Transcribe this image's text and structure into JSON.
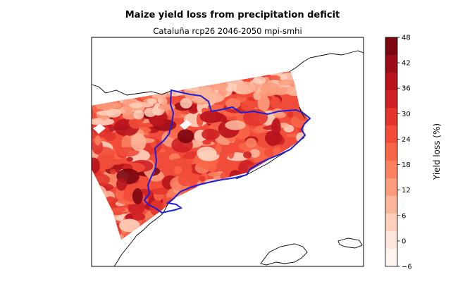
{
  "chart_data": {
    "type": "heatmap",
    "title": "Maize yield loss from precipitation deficit",
    "subtitle": "Cataluña rcp26 2046-2050 mpi-smhi",
    "colorbar": {
      "label": "Yield loss (%)",
      "ticks": [
        "48",
        "42",
        "36",
        "30",
        "24",
        "18",
        "12",
        "6",
        "0",
        "−6"
      ],
      "levels": [
        -6,
        -3,
        0,
        3,
        6,
        9,
        12,
        15,
        18,
        21,
        24,
        27,
        30,
        33,
        36,
        39,
        42,
        45,
        48
      ],
      "colors": [
        "#fff5f0",
        "#fee6dc",
        "#fdd0bb",
        "#fcb69b",
        "#fc9c7d",
        "#fb8161",
        "#f86649",
        "#f14c3a",
        "#e2342b",
        "#ce2025",
        "#b8131d",
        "#9a0d16",
        "#7b0611"
      ]
    },
    "map": {
      "region": "Cataluña",
      "dominant_range": [
        18,
        36
      ],
      "max_patches": [
        42,
        48
      ],
      "min_patches": [
        0,
        12
      ]
    }
  }
}
